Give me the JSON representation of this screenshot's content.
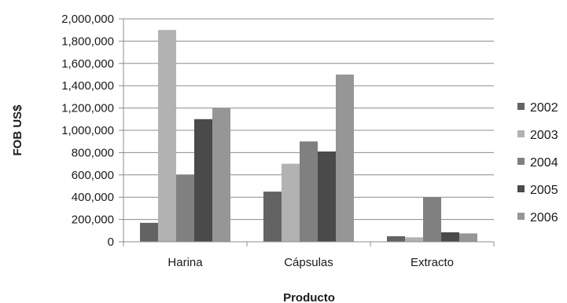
{
  "chart_data": {
    "type": "bar",
    "categories": [
      "Harina",
      "Cápsulas",
      "Extracto"
    ],
    "series": [
      {
        "name": "2002",
        "values": [
          170000,
          450000,
          50000
        ],
        "color": "#636363"
      },
      {
        "name": "2003",
        "values": [
          1900000,
          700000,
          40000
        ],
        "color": "#b2b2b2"
      },
      {
        "name": "2004",
        "values": [
          600000,
          900000,
          400000
        ],
        "color": "#808080"
      },
      {
        "name": "2005",
        "values": [
          1100000,
          810000,
          85000
        ],
        "color": "#4a4a4a"
      },
      {
        "name": "2006",
        "values": [
          1200000,
          1500000,
          75000
        ],
        "color": "#969696"
      }
    ],
    "xlabel": "Producto",
    "ylabel": "FOB US$",
    "ylim": [
      0,
      2000000
    ],
    "ytick_step": 200000,
    "yticks": [
      "0",
      "200,000",
      "400,000",
      "600,000",
      "800,000",
      "1,000,000",
      "1,200,000",
      "1,400,000",
      "1,600,000",
      "1,800,000",
      "2,000,000"
    ],
    "grid": true,
    "legend": "right"
  }
}
